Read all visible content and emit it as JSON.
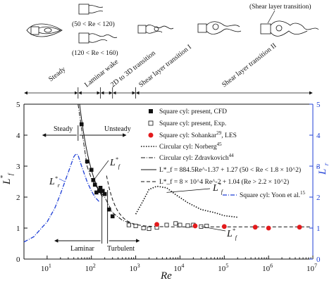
{
  "chart_data": {
    "type": "scatter",
    "xlabel": "Re",
    "ylabel_left": "L*_f",
    "ylabel_right": "L*_r",
    "xscale": "log",
    "xlim": [
      3,
      10000000
    ],
    "ylim": [
      0,
      5
    ],
    "x_ticks": [
      {
        "base": "10",
        "exp": "1",
        "value": 10
      },
      {
        "base": "10",
        "exp": "2",
        "value": 100
      },
      {
        "base": "10",
        "exp": "3",
        "value": 1000
      },
      {
        "base": "10",
        "exp": "4",
        "value": 10000
      },
      {
        "base": "10",
        "exp": "5",
        "value": 100000
      },
      {
        "base": "10",
        "exp": "6",
        "value": 1000000
      },
      {
        "base": "10",
        "exp": "7",
        "value": 10000000
      }
    ],
    "y_ticks": [
      "0",
      "1",
      "2",
      "3",
      "4",
      "5"
    ],
    "legend": [
      {
        "text": "Square cyl: present, CFD",
        "marker": "filled-square"
      },
      {
        "text": "Square cyl: present, Exp.",
        "marker": "open-square"
      },
      {
        "text": "Square cyl: Sohankar",
        "sup": "29",
        "suffix": ", LES",
        "marker": "red-circle"
      },
      {
        "text": "Circular cyl: Norberg",
        "sup": "45",
        "marker": "dotted-line"
      },
      {
        "text": "Circular cyl: Zdravkovich",
        "sup": "44",
        "marker": "dashdot-line"
      },
      {
        "text": "L*_f = 884.5Re^-1.37 + 1.27 (50 < Re < 1.8 × 10^2)",
        "marker": "solid-line"
      },
      {
        "text": "L*_f = 8 × 10^4 Re^-2 + 1.04 (Re > 2.2 × 10^2)",
        "marker": "dashed-line"
      },
      {
        "text": "Square cyl: Yoon et al.",
        "sup": "15",
        "marker": "blue-dashdot-line"
      }
    ],
    "series": [
      {
        "name": "Square cyl: present, CFD",
        "x": [
          60,
          80,
          100,
          110,
          120,
          130,
          150,
          160,
          180,
          200,
          250,
          300
        ],
        "y": [
          4.35,
          3.15,
          2.88,
          2.55,
          2.4,
          2.15,
          2.2,
          2.3,
          2.2,
          2.1,
          1.6,
          1.38
        ]
      },
      {
        "name": "Square cyl: present, Exp.",
        "x": [
          700,
          1000,
          1500,
          2000,
          3000,
          5000,
          8000,
          10000,
          15000,
          20000,
          30000,
          40000
        ],
        "y": [
          1.1,
          1.07,
          1.0,
          0.98,
          1.02,
          1.1,
          1.15,
          1.1,
          1.08,
          1.1,
          1.05,
          1.07
        ]
      },
      {
        "name": "Square cyl: Sohankar, LES",
        "x": [
          3000,
          22000,
          100000,
          500000,
          1000000,
          5000000
        ],
        "y": [
          1.12,
          1.07,
          1.05,
          1.03,
          1.0,
          1.03
        ]
      },
      {
        "name": "Circular cyl: Norberg",
        "x": [
          1000,
          1500,
          2000,
          3000,
          5000,
          8000,
          15000,
          30000,
          60000,
          100000,
          200000
        ],
        "y": [
          1.45,
          1.9,
          2.25,
          2.35,
          2.3,
          2.08,
          1.82,
          1.6,
          1.5,
          1.4,
          1.35
        ]
      },
      {
        "name": "Circular cyl: Zdravkovich",
        "x": [
          50,
          60,
          80,
          100,
          150,
          200,
          300,
          500,
          1000
        ],
        "y": [
          5.0,
          4.2,
          3.0,
          2.6,
          2.2,
          2.0,
          1.5,
          1.25,
          1.1
        ]
      },
      {
        "name": "Fit 1: L*_f = 884.5Re^-1.37 + 1.27",
        "formula": "884.5*Re^-1.37+1.27",
        "range": [
          50,
          180
        ]
      },
      {
        "name": "Fit 2: L*_f = 8e4 Re^-2 + 1.04",
        "formula": "8e4*Re^-2+1.04",
        "range": [
          220,
          10000000
        ]
      },
      {
        "name": "Square cyl: Yoon et al.",
        "x": [
          3,
          5,
          8,
          10,
          15,
          20,
          30,
          40,
          45,
          50,
          60,
          80,
          100,
          120,
          150
        ],
        "y": [
          0.55,
          0.72,
          1.05,
          1.2,
          1.65,
          2.1,
          2.8,
          3.3,
          3.4,
          3.35,
          3.0,
          2.5,
          2.2,
          2.0,
          1.85
        ]
      }
    ],
    "annotations": {
      "steady": "Steady",
      "unsteady": "Unsteady",
      "laminar": "Laminar",
      "turbulent": "Turbulent",
      "lfstar_1": "L*_f",
      "lfstar_2": "L*_f",
      "lfstar_3": "L*_f",
      "lrstar": "L*_r"
    },
    "regimes": [
      "Steady",
      "Laminar wake",
      "2D to 3D transition",
      "Shear layer transition I",
      "Shear layer transition II"
    ],
    "sketch_labels": {
      "range1": "(50 < Re < 120)",
      "range2": "(120 < Re < 160)",
      "shear": "(Shear layer transition)"
    }
  }
}
